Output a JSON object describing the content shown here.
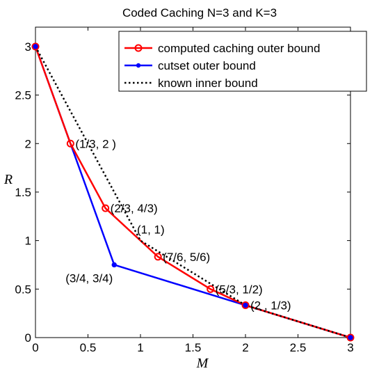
{
  "chart_data": {
    "type": "line",
    "title": "Coded Caching N=3 and K=3",
    "xlabel": "M",
    "ylabel": "R",
    "xlim": [
      0,
      3
    ],
    "ylim": [
      0,
      3.2
    ],
    "x_ticks": [
      "0",
      "0.5",
      "1",
      "1.5",
      "2",
      "2.5",
      "3"
    ],
    "y_ticks": [
      "0",
      "0.5",
      "1",
      "1.5",
      "2",
      "2.5",
      "3"
    ],
    "grid": false,
    "legend_position": "top-right",
    "series": [
      {
        "name": "computed caching outer bound",
        "color": "#ff0000",
        "marker": "circle",
        "points": [
          [
            0,
            3
          ],
          [
            0.3333,
            2
          ],
          [
            0.6667,
            1.3333
          ],
          [
            1.1667,
            0.8333
          ],
          [
            1.6667,
            0.5
          ],
          [
            2,
            0.3333
          ],
          [
            3,
            0
          ]
        ]
      },
      {
        "name": "cutset outer bound",
        "color": "#0000ff",
        "marker": "dot",
        "points": [
          [
            0,
            3
          ],
          [
            0.75,
            0.75
          ],
          [
            2,
            0.3333
          ],
          [
            3,
            0
          ]
        ]
      },
      {
        "name": "known inner bound",
        "color": "#000000",
        "style": "dotted",
        "points": [
          [
            0,
            3
          ],
          [
            1,
            1
          ],
          [
            2,
            0.3333
          ],
          [
            3,
            0
          ]
        ]
      }
    ],
    "annotations": [
      {
        "text": "(1/3, 2  )",
        "x": 0.3333,
        "y": 2,
        "anchor": "right-of"
      },
      {
        "text": "(2/3, 4/3)",
        "x": 0.6667,
        "y": 1.3333,
        "anchor": "right-of"
      },
      {
        "text": "(1, 1)",
        "x": 1,
        "y": 1,
        "anchor": "above"
      },
      {
        "text": "(7/6, 5/6)",
        "x": 1.1667,
        "y": 0.8333,
        "anchor": "right-of"
      },
      {
        "text": "(3/4, 3/4)",
        "x": 0.75,
        "y": 0.75,
        "anchor": "below"
      },
      {
        "text": "(5/3, 1/2)",
        "x": 1.6667,
        "y": 0.5,
        "anchor": "right-of"
      },
      {
        "text": "(2  , 1/3)",
        "x": 2,
        "y": 0.3333,
        "anchor": "right-of"
      }
    ]
  }
}
